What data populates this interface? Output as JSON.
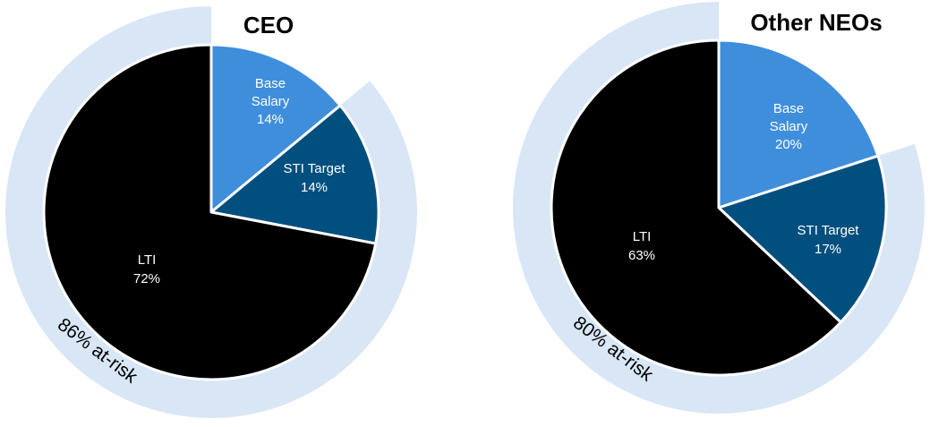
{
  "chart_data": [
    {
      "type": "pie",
      "title": "CEO",
      "slices": [
        {
          "label_lines": [
            "Base",
            "Salary"
          ],
          "value_label": "14%",
          "value": 14,
          "color": "#3F8EDC"
        },
        {
          "label_lines": [
            "STI Target"
          ],
          "value_label": "14%",
          "value": 14,
          "color": "#014F7E"
        },
        {
          "label_lines": [
            "LTI"
          ],
          "value_label": "72%",
          "value": 72,
          "color": "#000000"
        }
      ],
      "at_risk": {
        "label": "86% at-risk",
        "value": 86,
        "color": "#D8E6F6"
      }
    },
    {
      "type": "pie",
      "title": "Other NEOs",
      "slices": [
        {
          "label_lines": [
            "Base",
            "Salary"
          ],
          "value_label": "20%",
          "value": 20,
          "color": "#3F8EDC"
        },
        {
          "label_lines": [
            "STI Target"
          ],
          "value_label": "17%",
          "value": 17,
          "color": "#014F7E"
        },
        {
          "label_lines": [
            "LTI"
          ],
          "value_label": "63%",
          "value": 63,
          "color": "#000000"
        }
      ],
      "at_risk": {
        "label": "80% at-risk",
        "value": 80,
        "color": "#D8E6F6"
      }
    }
  ]
}
